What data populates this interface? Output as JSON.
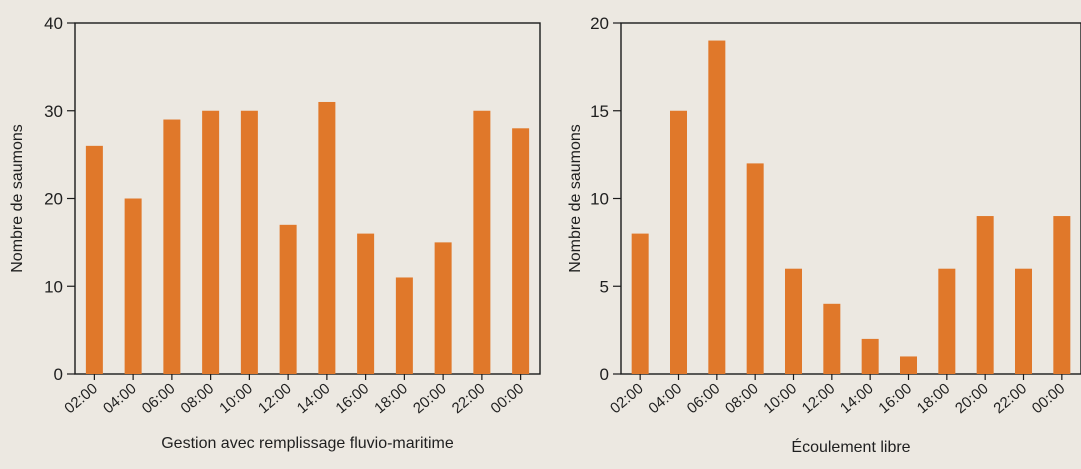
{
  "colors": {
    "background": "#ece8e1",
    "bar": "#e0782a",
    "axis": "#1a1a1a"
  },
  "chart_data": [
    {
      "type": "bar",
      "xlabel": "Gestion avec remplissage fluvio-maritime",
      "ylabel": "Nombre de saumons",
      "categories": [
        "02:00",
        "04:00",
        "06:00",
        "08:00",
        "10:00",
        "12:00",
        "14:00",
        "16:00",
        "18:00",
        "20:00",
        "22:00",
        "00:00"
      ],
      "values": [
        26,
        20,
        29,
        30,
        30,
        17,
        31,
        16,
        11,
        15,
        30,
        28
      ],
      "ylim": [
        0,
        40
      ],
      "yticks": [
        0,
        10,
        20,
        30,
        40
      ],
      "grid": false,
      "legend": false
    },
    {
      "type": "bar",
      "xlabel": "Écoulement libre",
      "ylabel": "Nombre de saumons",
      "categories": [
        "02:00",
        "04:00",
        "06:00",
        "08:00",
        "10:00",
        "12:00",
        "14:00",
        "16:00",
        "18:00",
        "20:00",
        "22:00",
        "00:00"
      ],
      "values": [
        8,
        15,
        19,
        12,
        6,
        4,
        2,
        1,
        6,
        9,
        6,
        9
      ],
      "ylim": [
        0,
        20
      ],
      "yticks": [
        0,
        5,
        10,
        15,
        20
      ],
      "grid": false,
      "legend": false
    }
  ]
}
